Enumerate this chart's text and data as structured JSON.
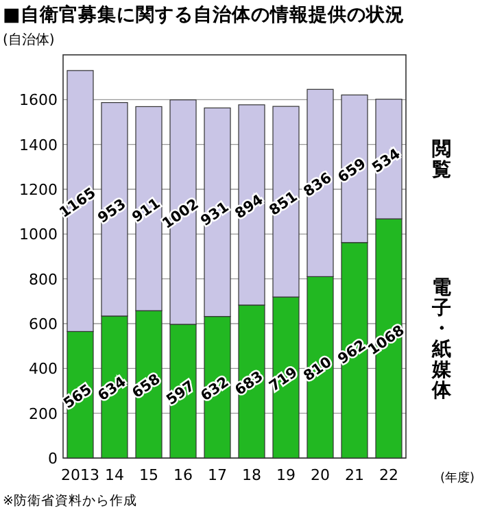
{
  "chart_data": {
    "type": "bar",
    "stacked": true,
    "title": "■自衛官募集に関する自治体の情報提供の状況",
    "ylabel": "(自治体)",
    "xlabel": "(年度)",
    "categories": [
      "2013",
      "14",
      "15",
      "16",
      "17",
      "18",
      "19",
      "20",
      "21",
      "22"
    ],
    "series": [
      {
        "name": "電子・紙媒体",
        "color": "#22b822",
        "values": [
          565,
          634,
          658,
          597,
          632,
          683,
          719,
          810,
          962,
          1068
        ]
      },
      {
        "name": "閲覧",
        "color": "#c9c5e6",
        "values": [
          1165,
          953,
          911,
          1002,
          931,
          894,
          851,
          836,
          659,
          534
        ]
      }
    ],
    "ylim": [
      0,
      1800
    ],
    "yticks": [
      0,
      200,
      400,
      600,
      800,
      1000,
      1200,
      1400,
      1600
    ],
    "grid": "y",
    "data_labels": true,
    "annotations": [
      "※防衛省資料から作成"
    ]
  }
}
